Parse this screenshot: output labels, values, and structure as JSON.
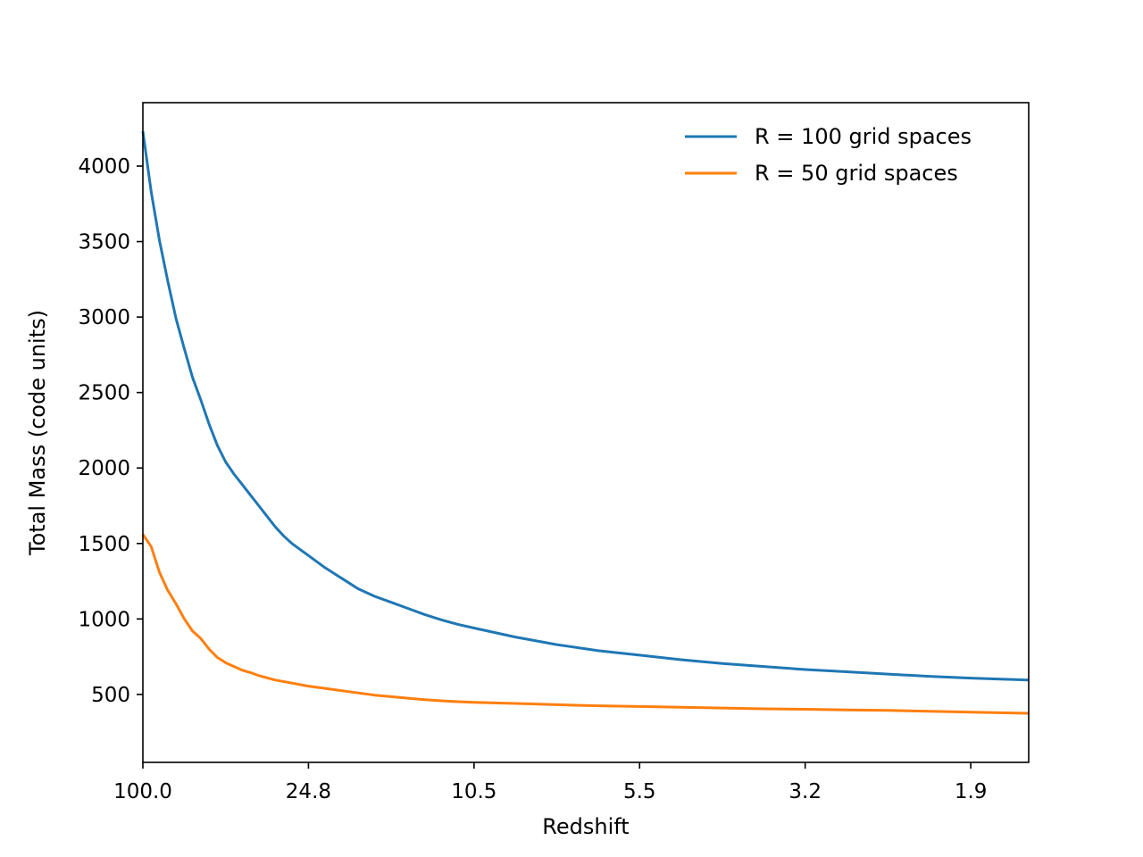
{
  "chart_data": {
    "type": "line",
    "title": "",
    "xlabel": "Redshift",
    "ylabel": "Total Mass (code units)",
    "x_axis_note": "x axis is ordered by snapshot index; tick labels show redshift",
    "xlim": [
      0,
      107
    ],
    "ylim": [
      50,
      4420
    ],
    "x_ticks": [
      {
        "pos": 0,
        "label": "100.0"
      },
      {
        "pos": 20,
        "label": "24.8"
      },
      {
        "pos": 40,
        "label": "10.5"
      },
      {
        "pos": 60,
        "label": "5.5"
      },
      {
        "pos": 80,
        "label": "3.2"
      },
      {
        "pos": 100,
        "label": "1.9"
      }
    ],
    "y_ticks": [
      500,
      1000,
      1500,
      2000,
      2500,
      3000,
      3500,
      4000
    ],
    "grid": false,
    "legend": {
      "placement": "top-right",
      "frame": false
    },
    "series": [
      {
        "name": "R = 100 grid spaces",
        "color": "#1f77b4",
        "x": [
          0,
          1,
          2,
          3,
          4,
          5,
          6,
          7,
          8,
          9,
          10,
          11,
          12,
          13,
          14,
          15,
          16,
          17,
          18,
          20,
          22,
          24,
          26,
          28,
          30,
          32,
          34,
          36,
          38,
          40,
          45,
          50,
          55,
          60,
          65,
          70,
          75,
          80,
          85,
          90,
          95,
          100,
          107
        ],
        "values": [
          4230,
          3830,
          3510,
          3240,
          2990,
          2790,
          2600,
          2450,
          2290,
          2150,
          2040,
          1960,
          1890,
          1820,
          1750,
          1680,
          1610,
          1550,
          1500,
          1420,
          1340,
          1270,
          1200,
          1150,
          1110,
          1070,
          1030,
          995,
          965,
          940,
          880,
          830,
          790,
          760,
          730,
          705,
          685,
          665,
          650,
          635,
          620,
          608,
          595
        ]
      },
      {
        "name": "R = 50 grid spaces",
        "color": "#ff7f0e",
        "x": [
          0,
          1,
          2,
          3,
          4,
          5,
          6,
          7,
          8,
          9,
          10,
          11,
          12,
          13,
          14,
          15,
          16,
          18,
          20,
          22,
          24,
          26,
          28,
          30,
          32,
          34,
          36,
          38,
          40,
          45,
          50,
          55,
          60,
          65,
          70,
          75,
          80,
          85,
          90,
          95,
          100,
          107
        ],
        "values": [
          1560,
          1480,
          1310,
          1190,
          1100,
          1000,
          920,
          870,
          800,
          745,
          710,
          685,
          660,
          645,
          625,
          610,
          595,
          575,
          555,
          540,
          525,
          510,
          495,
          485,
          475,
          465,
          458,
          452,
          448,
          440,
          432,
          425,
          420,
          415,
          410,
          405,
          402,
          398,
          394,
          388,
          383,
          375
        ]
      }
    ]
  }
}
